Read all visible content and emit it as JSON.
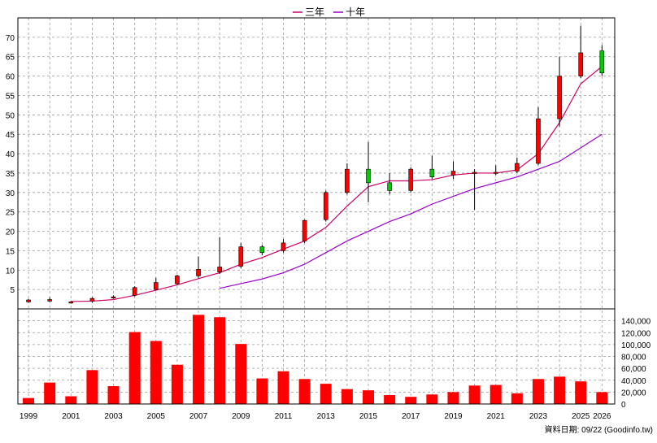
{
  "chart_data": {
    "type": "candlestick+bar",
    "legend": [
      {
        "label": "三年",
        "color": "#CC0066"
      },
      {
        "label": "十年",
        "color": "#9900CC"
      }
    ],
    "source_note": "資料日期: 09/22  (Goodinfo.tw)",
    "price_axis": {
      "ylim": [
        0,
        75
      ],
      "ticks": [
        "5",
        "10",
        "15",
        "20",
        "25",
        "30",
        "35",
        "40",
        "45",
        "50",
        "55",
        "60",
        "65",
        "70"
      ],
      "position": "left",
      "grid": true
    },
    "volume_axis": {
      "ylim": [
        0,
        160000
      ],
      "ticks": [
        "0",
        "20,000",
        "40,000",
        "60,000",
        "80,000",
        "100,000",
        "120,000",
        "140,000"
      ],
      "position": "right",
      "grid": true
    },
    "x_axis": {
      "ticks": [
        "1999",
        "2001",
        "2003",
        "2005",
        "2007",
        "2009",
        "2011",
        "2013",
        "2015",
        "2017",
        "2019",
        "2021",
        "2023",
        "2025",
        "2026"
      ]
    },
    "years": [
      1999,
      2000,
      2001,
      2002,
      2003,
      2004,
      2005,
      2006,
      2007,
      2008,
      2009,
      2010,
      2011,
      2012,
      2013,
      2014,
      2015,
      2016,
      2017,
      2018,
      2019,
      2020,
      2021,
      2022,
      2023,
      2024,
      2025,
      2026
    ],
    "candles": [
      {
        "open": 1.8,
        "close": 2.3,
        "high": 2.6,
        "low": 1.6
      },
      {
        "open": 2.0,
        "close": 2.4,
        "high": 3.0,
        "low": 1.8
      },
      {
        "open": 1.6,
        "close": 1.8,
        "high": 2.0,
        "low": 1.4
      },
      {
        "open": 2.0,
        "close": 2.7,
        "high": 3.0,
        "low": 1.6
      },
      {
        "open": 2.8,
        "close": 3.1,
        "high": 3.5,
        "low": 2.6
      },
      {
        "open": 3.5,
        "close": 5.5,
        "high": 5.8,
        "low": 3.2
      },
      {
        "open": 5.0,
        "close": 6.8,
        "high": 8.0,
        "low": 4.8
      },
      {
        "open": 6.5,
        "close": 8.5,
        "high": 8.8,
        "low": 6.2
      },
      {
        "open": 8.5,
        "close": 10.2,
        "high": 13.5,
        "low": 8.0
      },
      {
        "open": 9.5,
        "close": 10.8,
        "high": 18.5,
        "low": 9.0
      },
      {
        "open": 11.0,
        "close": 16.0,
        "high": 17.0,
        "low": 10.5
      },
      {
        "open": 16.0,
        "close": 14.5,
        "high": 16.5,
        "low": 13.8
      },
      {
        "open": 15.0,
        "close": 17.0,
        "high": 18.0,
        "low": 14.5
      },
      {
        "open": 17.5,
        "close": 22.8,
        "high": 23.0,
        "low": 17.0
      },
      {
        "open": 23.0,
        "close": 30.0,
        "high": 30.5,
        "low": 22.5
      },
      {
        "open": 30.0,
        "close": 36.0,
        "high": 37.5,
        "low": 29.5
      },
      {
        "open": 36.0,
        "close": 32.5,
        "high": 43.0,
        "low": 27.5
      },
      {
        "open": 32.5,
        "close": 30.5,
        "high": 35.0,
        "low": 29.5
      },
      {
        "open": 30.5,
        "close": 36.0,
        "high": 36.5,
        "low": 30.0
      },
      {
        "open": 36.0,
        "close": 34.0,
        "high": 39.5,
        "low": 33.5
      },
      {
        "open": 34.5,
        "close": 35.5,
        "high": 38.0,
        "low": 33.5
      },
      {
        "open": 35.0,
        "close": 35.2,
        "high": 36.0,
        "low": 25.5
      },
      {
        "open": 35.0,
        "close": 35.2,
        "high": 37.0,
        "low": 34.5
      },
      {
        "open": 35.5,
        "close": 37.5,
        "high": 39.0,
        "low": 35.0
      },
      {
        "open": 37.5,
        "close": 49.0,
        "high": 52.0,
        "low": 37.0
      },
      {
        "open": 49.0,
        "close": 60.0,
        "high": 65.0,
        "low": 47.0
      },
      {
        "open": 60.0,
        "close": 66.0,
        "high": 73.0,
        "low": 59.5
      },
      {
        "open": 66.5,
        "close": 60.8,
        "high": 68.0,
        "low": 60.0
      }
    ],
    "ma3": [
      null,
      null,
      1.9,
      2.0,
      2.4,
      3.5,
      4.8,
      6.2,
      7.8,
      9.3,
      11.5,
      13.2,
      15.4,
      17.5,
      21.0,
      26.5,
      31.5,
      33.0,
      33.0,
      33.3,
      34.5,
      35.0,
      35.0,
      35.8,
      40.0,
      48.0,
      58.0,
      62.5
    ],
    "ma10": [
      null,
      null,
      null,
      null,
      null,
      null,
      null,
      null,
      null,
      5.3,
      6.5,
      7.7,
      9.3,
      11.5,
      14.5,
      17.5,
      20.0,
      22.5,
      24.5,
      27.0,
      29.0,
      31.0,
      32.5,
      34.0,
      36.0,
      38.0,
      41.5,
      45.0
    ],
    "volume": [
      10000,
      36000,
      13000,
      57000,
      30000,
      121000,
      106000,
      66000,
      150000,
      146000,
      101000,
      43000,
      55000,
      42000,
      34000,
      25000,
      23000,
      15000,
      12000,
      16000,
      20000,
      31000,
      32000,
      18000,
      42000,
      46000,
      38000,
      20000
    ],
    "colors": {
      "up": "#FF0000",
      "down": "#00CC00",
      "volume": "#FF0000",
      "grid": "#999999",
      "frame": "#000000"
    }
  }
}
